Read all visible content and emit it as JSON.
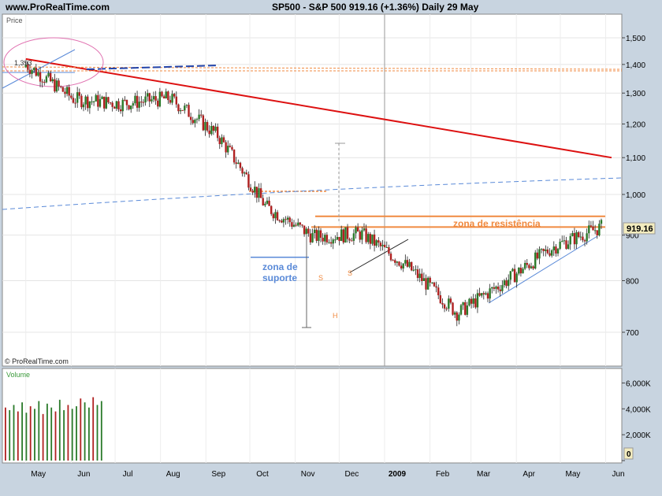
{
  "header": {
    "site": "www.ProRealTime.com",
    "title": "SP500 - S&P 500    919.16 (+1.36%)   Daily  29 May"
  },
  "price_panel": {
    "label": "Price",
    "watermark": "© ProRealTime.com"
  },
  "volume_panel": {
    "label": "Volume"
  },
  "colors": {
    "up": "#2a7a2a",
    "down": "#b02020",
    "trend": "#dd1111",
    "resistance": "#f08a40",
    "support": "#5a8ad8",
    "background": "#ffffff"
  },
  "annotations": {
    "resistance_label": "zona de resistência",
    "support_label_1": "zona de",
    "support_label_2": "suporte",
    "shoulder_1": "S",
    "shoulder_2": "S",
    "head": "H",
    "old_level": "1,393",
    "last_price": "919.16",
    "volume_zero": "0"
  },
  "chart_data": [
    {
      "type": "candlestick",
      "title": "SP500 - S&P 500",
      "ylabel": "Price",
      "ylim": [
        660,
        1560
      ],
      "y_scale": "log",
      "y_ticks": [
        "1,500",
        "1,400",
        "1,300",
        "1,200",
        "1,100",
        "1,000",
        "900",
        "800",
        "700"
      ],
      "x_ticks": [
        "May",
        "Jun",
        "Jul",
        "Aug",
        "Sep",
        "Oct",
        "Nov",
        "Dec",
        "2009",
        "Feb",
        "Mar",
        "Apr",
        "May",
        "Jun"
      ],
      "grid": true,
      "legend": "none",
      "series": [
        {
          "name": "monthly_close",
          "x": [
            "2008-05",
            "2008-06",
            "2008-07",
            "2008-08",
            "2008-09",
            "2008-10",
            "2008-11",
            "2008-12",
            "2009-01",
            "2009-02",
            "2009-03",
            "2009-04",
            "2009-05"
          ],
          "values": [
            1400,
            1280,
            1265,
            1283,
            1165,
            969,
            896,
            903,
            826,
            735,
            798,
            873,
            919
          ]
        }
      ],
      "lines": [
        {
          "name": "long-term downtrend",
          "from": [
            "2008-05-01",
            1420
          ],
          "to": [
            "2009-06-05",
            1100
          ]
        },
        {
          "name": "resistance top",
          "value": 945
        },
        {
          "name": "resistance bottom",
          "value": 919
        },
        {
          "name": "support",
          "value": 850
        }
      ],
      "last_value": 919.16
    },
    {
      "type": "bar",
      "title": "Volume",
      "ylim": [
        0,
        7000000
      ],
      "y_ticks": [
        "6,000K",
        "4,000K",
        "2,000K",
        "0"
      ],
      "values_k": [
        4100,
        3900,
        4300,
        3800,
        4500,
        3700,
        4200,
        4000,
        4600,
        3600,
        4400,
        4100,
        3800,
        4700,
        3900,
        4300,
        4000,
        4200,
        4800,
        4500,
        4100,
        4900,
        4300,
        4600
      ]
    }
  ]
}
